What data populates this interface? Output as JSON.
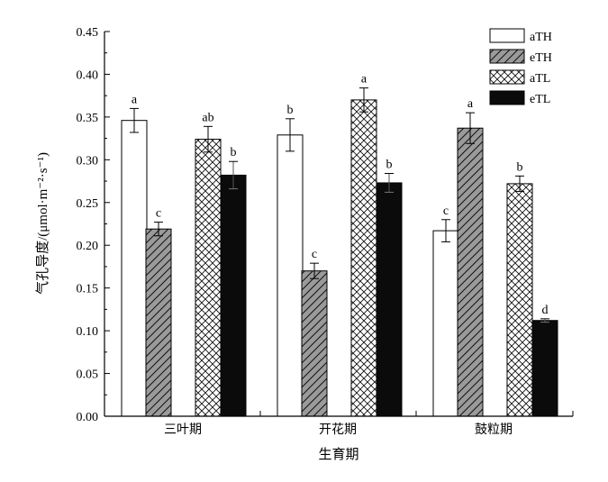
{
  "chart_data": {
    "type": "bar",
    "title": "",
    "xlabel": "生育期",
    "ylabel": "气孔导度/(μmol·m⁻²·s⁻¹)",
    "ylim": [
      0,
      0.45
    ],
    "yticks": [
      "0.00",
      "0.05",
      "0.10",
      "0.15",
      "0.20",
      "0.25",
      "0.30",
      "0.35",
      "0.40",
      "0.45"
    ],
    "categories": [
      "三叶期",
      "开花期",
      "鼓粒期"
    ],
    "legend_position": "top-right",
    "grid": false,
    "series": [
      {
        "name": "aTH",
        "pattern": "white",
        "values": [
          0.346,
          0.329,
          0.217
        ],
        "errors": [
          0.014,
          0.019,
          0.013
        ],
        "labels": [
          "a",
          "b",
          "c"
        ]
      },
      {
        "name": "eTH",
        "pattern": "diagonal-hatch",
        "values": [
          0.219,
          0.17,
          0.337
        ],
        "errors": [
          0.008,
          0.009,
          0.018
        ],
        "labels": [
          "c",
          "c",
          "a"
        ]
      },
      {
        "name": "aTL",
        "pattern": "crosshatch",
        "values": [
          0.324,
          0.37,
          0.272
        ],
        "errors": [
          0.015,
          0.014,
          0.009
        ],
        "labels": [
          "ab",
          "a",
          "b"
        ]
      },
      {
        "name": "eTL",
        "pattern": "black",
        "values": [
          0.282,
          0.273,
          0.112
        ],
        "errors": [
          0.016,
          0.011,
          0.002
        ],
        "labels": [
          "b",
          "b",
          "d"
        ]
      }
    ]
  }
}
